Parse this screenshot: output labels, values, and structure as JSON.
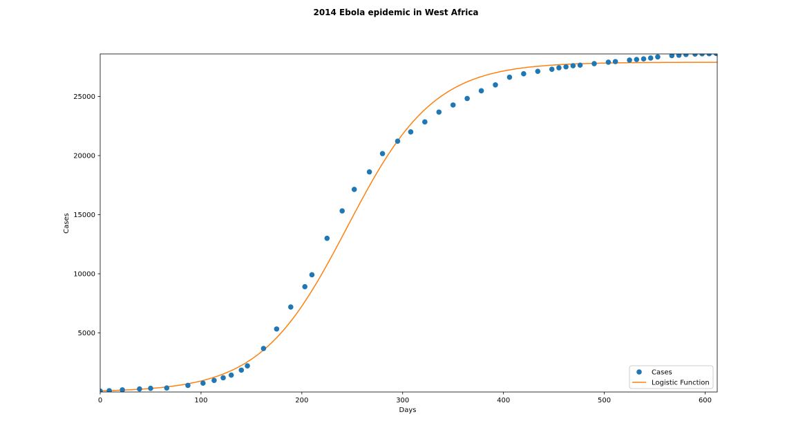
{
  "chart_data": {
    "type": "scatter",
    "title": "2014 Ebola epidemic in West Africa",
    "xlabel": "Days",
    "ylabel": "Cases",
    "xlim": [
      0,
      612
    ],
    "ylim": [
      0,
      28600
    ],
    "xticks": [
      0,
      100,
      200,
      300,
      400,
      500,
      600
    ],
    "yticks": [
      5000,
      10000,
      15000,
      20000,
      25000
    ],
    "grid": false,
    "legend_position": "lower-right",
    "series": [
      {
        "name": "Cases",
        "kind": "scatter",
        "color": "#1f77b4",
        "x": [
          0,
          9,
          22,
          39,
          50,
          66,
          87,
          102,
          113,
          122,
          130,
          140,
          146,
          162,
          175,
          189,
          203,
          210,
          225,
          240,
          252,
          267,
          280,
          295,
          308,
          322,
          336,
          350,
          364,
          378,
          392,
          406,
          420,
          434,
          448,
          455,
          462,
          469,
          476,
          490,
          504,
          511,
          525,
          532,
          539,
          546,
          553,
          567,
          574,
          581,
          590,
          597,
          604,
          611
        ],
        "y": [
          80,
          110,
          180,
          260,
          310,
          340,
          560,
          750,
          980,
          1200,
          1430,
          1850,
          2210,
          3680,
          5330,
          7190,
          8910,
          9920,
          13000,
          15320,
          17140,
          18620,
          20170,
          21220,
          22000,
          22850,
          23680,
          24280,
          24830,
          25480,
          25980,
          26630,
          26920,
          27130,
          27300,
          27430,
          27510,
          27600,
          27650,
          27780,
          27900,
          27950,
          28080,
          28130,
          28180,
          28250,
          28350,
          28460,
          28490,
          28550,
          28590,
          28610,
          28620,
          28640
        ]
      },
      {
        "name": "Logistic Function",
        "kind": "line",
        "color": "#ff7f0e",
        "function": "logistic",
        "carrying_capacity": 27900,
        "growth_rate": 0.0232,
        "midpoint_day": 245
      }
    ]
  }
}
